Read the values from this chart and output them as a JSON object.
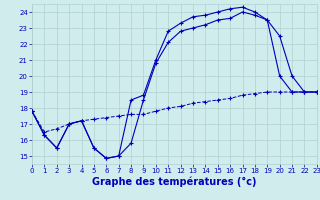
{
  "bg_color": "#d0ecec",
  "grid_color": "#b0d0d0",
  "line_color": "#0000bb",
  "xlabel": "Graphe des températures (°c)",
  "xlabel_fontsize": 7,
  "xlim": [
    0,
    23
  ],
  "ylim": [
    14.5,
    24.5
  ],
  "yticks": [
    15,
    16,
    17,
    18,
    19,
    20,
    21,
    22,
    23,
    24
  ],
  "xticks": [
    0,
    1,
    2,
    3,
    4,
    5,
    6,
    7,
    8,
    9,
    10,
    11,
    12,
    13,
    14,
    15,
    16,
    17,
    18,
    19,
    20,
    21,
    22,
    23
  ],
  "curve1_x": [
    0,
    1,
    2,
    3,
    4,
    5,
    6,
    7,
    8,
    9,
    10,
    11,
    12,
    13,
    14,
    15,
    16,
    17,
    18,
    19,
    20,
    21,
    22,
    23
  ],
  "curve1_y": [
    17.8,
    16.3,
    15.5,
    17.0,
    17.2,
    15.5,
    14.85,
    15.0,
    15.8,
    18.5,
    20.8,
    22.1,
    22.8,
    23.0,
    23.2,
    23.5,
    23.6,
    24.0,
    23.8,
    23.5,
    20.0,
    19.0,
    19.0,
    19.0
  ],
  "curve2_x": [
    0,
    1,
    2,
    3,
    4,
    5,
    6,
    7,
    8,
    9,
    10,
    11,
    12,
    13,
    14,
    15,
    16,
    17,
    18,
    19,
    20,
    21,
    22,
    23
  ],
  "curve2_y": [
    17.8,
    16.3,
    15.5,
    17.0,
    17.2,
    15.5,
    14.85,
    15.0,
    18.5,
    18.8,
    21.0,
    22.8,
    23.3,
    23.7,
    23.8,
    24.0,
    24.2,
    24.3,
    24.0,
    23.5,
    22.5,
    20.0,
    19.0,
    19.0
  ],
  "curve3_x": [
    0,
    1,
    2,
    3,
    4,
    5,
    6,
    7,
    8,
    9,
    10,
    11,
    12,
    13,
    14,
    15,
    16,
    17,
    18,
    19,
    20,
    21,
    22,
    23
  ],
  "curve3_y": [
    17.8,
    16.5,
    16.7,
    17.0,
    17.2,
    17.3,
    17.4,
    17.5,
    17.6,
    17.6,
    17.8,
    18.0,
    18.1,
    18.3,
    18.4,
    18.5,
    18.6,
    18.8,
    18.9,
    19.0,
    19.0,
    19.0,
    19.0,
    19.0
  ]
}
